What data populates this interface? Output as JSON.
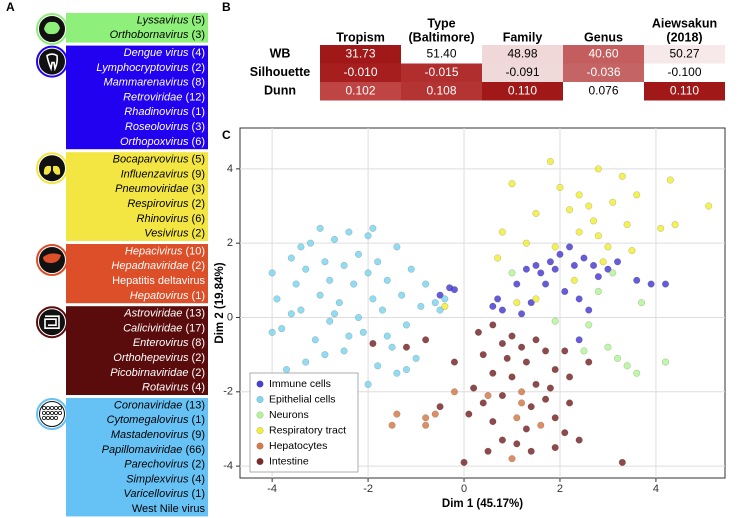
{
  "panels": {
    "a": {
      "label": "A",
      "groups": [
        {
          "color": "#8ef07a",
          "text_color": "#000",
          "items": [
            {
              "name": "Lyssavirus",
              "count": "(5)"
            },
            {
              "name": "Orthobornavirus",
              "count": "(3)"
            }
          ]
        },
        {
          "color": "#2200f0",
          "text_color": "#fff",
          "items": [
            {
              "name": "Dengue virus",
              "count": "(4)"
            },
            {
              "name": "Lymphocryptovirus",
              "count": "(2)"
            },
            {
              "name": "Mammarenavirus",
              "count": "(8)"
            },
            {
              "name": "Retroviridae",
              "count": "(12)"
            },
            {
              "name": "Rhadinovirus",
              "count": "(1)"
            },
            {
              "name": "Roseolovirus",
              "count": "(3)"
            },
            {
              "name": "Orthopoxvirus",
              "count": "(6)"
            }
          ]
        },
        {
          "color": "#f4e642",
          "text_color": "#000",
          "items": [
            {
              "name": "Bocaparvovirus",
              "count": "(5)"
            },
            {
              "name": "Influenzavirus",
              "count": "(9)"
            },
            {
              "name": "Pneumoviridae",
              "count": "(3)"
            },
            {
              "name": "Respirovirus",
              "count": "(2)"
            },
            {
              "name": "Rhinovirus",
              "count": "(6)"
            },
            {
              "name": "Vesivirus",
              "count": "(2)"
            }
          ]
        },
        {
          "color": "#dd4f28",
          "text_color": "#fff",
          "items": [
            {
              "name": "Hepacivirus",
              "count": "(10)"
            },
            {
              "name": "Hepadnaviridae",
              "count": "(2)"
            },
            {
              "name": "Hepatitis deltavirus"
            },
            {
              "name": "Hepatovirus",
              "count": "(1)"
            }
          ]
        },
        {
          "color": "#5a0c0c",
          "text_color": "#fff",
          "items": [
            {
              "name": "Astroviridae",
              "count": "(13)"
            },
            {
              "name": "Caliciviridae",
              "count": "(17)"
            },
            {
              "name": "Enterovirus",
              "count": "(8)"
            },
            {
              "name": "Orthohepevirus",
              "count": "(2)"
            },
            {
              "name": "Picobirnaviridae",
              "count": "(2)"
            },
            {
              "name": "Rotavirus",
              "count": "(4)"
            }
          ]
        },
        {
          "color": "#66c2f5",
          "text_color": "#000",
          "items": [
            {
              "name": "Coronaviridae",
              "count": "(13)"
            },
            {
              "name": "Cytomegalovirus",
              "count": "(1)"
            },
            {
              "name": "Mastadenovirus",
              "count": "(9)"
            },
            {
              "name": "Papillomaviridae",
              "count": "(66)"
            },
            {
              "name": "Parechovirus",
              "count": "(2)"
            },
            {
              "name": "Simplexvirus",
              "count": "(4)"
            },
            {
              "name": "Varicellovirus",
              "count": "(1)"
            },
            {
              "name": "West Nile virus"
            }
          ]
        }
      ]
    },
    "b": {
      "label": "B",
      "columns": [
        [
          "Tropism"
        ],
        [
          "Type",
          "(Baltimore)"
        ],
        [
          "Family"
        ],
        [
          "Genus"
        ],
        [
          "Aiewsakun",
          "(2018)"
        ]
      ],
      "rows": [
        {
          "name": "WB",
          "cells": [
            "31.73",
            "51.40",
            "48.98",
            "40.60",
            "50.27"
          ],
          "colors": [
            "#a01818",
            "#ffffff",
            "#f0d8d8",
            "#c45e5e",
            "#f7e9e9"
          ]
        },
        {
          "name": "Silhouette",
          "cells": [
            "-0.010",
            "-0.015",
            "-0.091",
            "-0.036",
            "-0.100"
          ],
          "colors": [
            "#a61e1e",
            "#b02e2e",
            "#efd9d9",
            "#c46464",
            "#ffffff"
          ]
        },
        {
          "name": "Dunn",
          "cells": [
            "0.102",
            "0.108",
            "0.110",
            "0.076",
            "0.110"
          ],
          "colors": [
            "#bf4545",
            "#b43434",
            "#a01818",
            "#ffffff",
            "#a01818"
          ]
        }
      ]
    }
  },
  "chart_data": {
    "type": "scatter",
    "panel_label": "C",
    "x_label": "Dim 1 (45.17%)",
    "y_label": "Dim 2 (19.84%)",
    "xlim": [
      -4.67,
      5.44
    ],
    "ylim": [
      -4.32,
      5.1
    ],
    "xticks": [
      -4,
      -2,
      0,
      2,
      4
    ],
    "yticks": [
      -4,
      -2,
      0,
      2,
      4
    ],
    "grid": true,
    "legend": "lower left",
    "series": [
      {
        "name": "Immune cells",
        "color": "#4b3fd2",
        "x": [
          -0.3,
          -0.2,
          -0.5,
          0.6,
          0.7,
          0.8,
          1.1,
          1.3,
          1.5,
          1.6,
          1.8,
          1.9,
          1.7,
          2.0,
          2.2,
          2.3,
          2.5,
          2.7,
          2.8,
          3.0,
          3.2,
          2.1,
          2.4,
          1.4,
          3.6,
          3.9,
          4.2,
          2.6,
          1.2,
          2.4
        ],
        "values": [
          0.8,
          0.75,
          0.6,
          0.3,
          0.5,
          0.2,
          0.9,
          1.3,
          1.4,
          1.2,
          1.5,
          1.3,
          0.9,
          1.7,
          1.9,
          1.4,
          1.6,
          1.4,
          1.1,
          1.3,
          1.5,
          0.7,
          0.5,
          0.4,
          1.0,
          0.9,
          0.9,
          0.2,
          0.1,
          -0.6
        ]
      },
      {
        "name": "Epithelial cells",
        "color": "#7fd6f0",
        "x": [
          -4.0,
          -3.9,
          -3.8,
          -3.7,
          -3.6,
          -3.5,
          -3.4,
          -3.3,
          -3.2,
          -3.1,
          -3.0,
          -3.0,
          -2.9,
          -2.8,
          -2.8,
          -2.7,
          -2.6,
          -2.5,
          -2.5,
          -2.4,
          -2.3,
          -2.2,
          -2.2,
          -2.1,
          -2.0,
          -2.0,
          -1.9,
          -1.8,
          -1.8,
          -1.7,
          -1.6,
          -1.5,
          -1.4,
          -1.3,
          -1.2,
          -1.1,
          -1.0,
          -0.9,
          -0.8,
          -0.6,
          -0.5,
          -3.3,
          -2.6,
          -2.0,
          -1.4,
          -3.6,
          -2.4,
          -1.6,
          -2.9,
          -3.4,
          -2.7,
          -1.9,
          -1.2,
          -0.4,
          -4.0
        ],
        "values": [
          1.2,
          0.5,
          -0.3,
          -1.4,
          1.6,
          0.9,
          0.2,
          1.3,
          2.0,
          -0.6,
          2.4,
          0.6,
          1.5,
          -0.1,
          1.0,
          2.1,
          0.4,
          1.4,
          -0.9,
          2.3,
          0.9,
          0.0,
          1.7,
          -0.4,
          1.2,
          2.2,
          0.5,
          -1.3,
          1.5,
          0.2,
          1.0,
          -0.8,
          1.9,
          0.6,
          -0.2,
          1.3,
          -1.1,
          0.3,
          0.9,
          0.4,
          0.2,
          -1.2,
          -1.6,
          -1.8,
          -1.5,
          0.1,
          -0.5,
          -0.5,
          -1.0,
          1.9,
          0.1,
          2.4,
          -1.4,
          0.5,
          -0.4
        ]
      },
      {
        "name": "Neurons",
        "color": "#b4f498",
        "x": [
          1.0,
          3.1,
          3.0,
          3.2,
          3.6,
          3.7,
          4.2,
          2.6,
          2.8,
          1.9,
          2.5,
          3.4
        ],
        "values": [
          1.2,
          1.2,
          -0.8,
          -1.1,
          -1.5,
          0.4,
          -1.2,
          -0.2,
          0.7,
          -0.1,
          -0.9,
          -1.3
        ]
      },
      {
        "name": "Respiratory tract",
        "color": "#f2ef3a",
        "x": [
          1.8,
          2.8,
          3.3,
          4.3,
          5.1,
          1.0,
          2.0,
          2.4,
          2.6,
          2.2,
          3.6,
          3.1,
          2.7,
          2.4,
          2.8,
          3.4,
          3.0,
          4.4,
          4.1,
          0.8,
          1.3,
          1.5,
          2.9,
          2.3,
          1.5,
          3.5,
          1.1,
          -0.4,
          1.9,
          0.7
        ],
        "values": [
          4.2,
          4.0,
          3.8,
          3.7,
          3.0,
          3.6,
          3.5,
          3.3,
          3.0,
          2.9,
          3.3,
          3.1,
          2.6,
          2.3,
          2.2,
          2.5,
          1.9,
          2.5,
          2.4,
          2.3,
          2.0,
          2.8,
          1.5,
          1.0,
          0.5,
          1.8,
          0.4,
          0.3,
          1.9,
          1.6
        ]
      },
      {
        "name": "Hepatocytes",
        "color": "#d67b4b",
        "x": [
          -1.4,
          -1.5,
          -0.8,
          -0.8,
          -0.6,
          -0.2,
          0.5,
          1.2,
          1.1,
          1.2,
          1.6,
          1.0
        ],
        "values": [
          -2.6,
          -2.9,
          -2.7,
          -2.9,
          -2.6,
          -2.0,
          -2.1,
          -2.0,
          -2.7,
          -2.3,
          -2.9,
          -3.8
        ]
      },
      {
        "name": "Intestine",
        "color": "#7a2a2a",
        "x": [
          -0.8,
          -1.2,
          -1.9,
          0.3,
          0.6,
          0.8,
          1.0,
          1.2,
          1.5,
          1.7,
          0.4,
          0.9,
          1.3,
          1.9,
          2.1,
          0.6,
          1.0,
          1.5,
          1.8,
          2.2,
          0.2,
          0.4,
          0.8,
          1.4,
          1.7,
          2.2,
          0.1,
          0.6,
          1.3,
          1.9,
          2.1,
          2.4,
          0.8,
          1.1,
          0.5,
          0.0,
          1.4,
          1.9,
          3.3,
          -0.5,
          -0.2,
          2.6
        ],
        "values": [
          -0.6,
          -0.8,
          -0.7,
          -0.4,
          -0.2,
          -0.7,
          -0.5,
          -0.8,
          -0.6,
          -0.9,
          -1.0,
          -1.1,
          -1.2,
          -1.4,
          -0.9,
          -1.5,
          -1.6,
          -1.8,
          -1.9,
          -1.6,
          -1.9,
          -2.3,
          -2.1,
          -2.4,
          -2.2,
          -2.3,
          -2.6,
          -2.8,
          -3.0,
          -2.7,
          -3.1,
          -3.3,
          -3.3,
          -3.4,
          -3.6,
          -3.9,
          -3.6,
          -3.5,
          -3.9,
          -2.4,
          -1.2,
          -1.2
        ]
      }
    ]
  }
}
